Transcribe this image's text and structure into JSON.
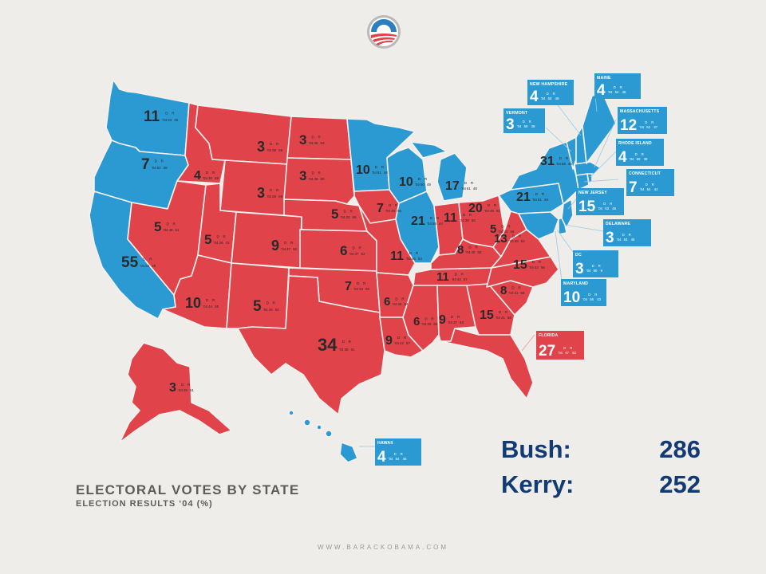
{
  "legend": {
    "title": "ELECTORAL VOTES BY STATE",
    "subtitle": "ELECTION RESULTS ‘04   (%)"
  },
  "results": [
    {
      "name": "Bush:",
      "value": "286"
    },
    {
      "name": "Kerry:",
      "value": "252"
    }
  ],
  "footer": "WWW.BARACKOBAMA.COM",
  "column_headers": {
    "dem": "D",
    "rep": "R",
    "year": "‘04"
  },
  "colors": {
    "republican": "#e0434a",
    "democrat": "#2b9ad3",
    "text_dark": "#123a75"
  },
  "states": {
    "WA": {
      "ev": "11",
      "d": "53",
      "r": "46"
    },
    "OR": {
      "ev": "7",
      "d": "52",
      "r": "48"
    },
    "CA": {
      "ev": "55",
      "d": "54",
      "r": "45"
    },
    "ID": {
      "ev": "4",
      "d": "30",
      "r": "68"
    },
    "NV": {
      "ev": "5",
      "d": "48",
      "r": "51"
    },
    "MT": {
      "ev": "3",
      "d": "39",
      "r": "59"
    },
    "WY": {
      "ev": "3",
      "d": "29",
      "r": "69"
    },
    "UT": {
      "ev": "5",
      "d": "26",
      "r": "72"
    },
    "AZ": {
      "ev": "10",
      "d": "44",
      "r": "55"
    },
    "CO": {
      "ev": "9",
      "d": "47",
      "r": "52"
    },
    "NM": {
      "ev": "5",
      "d": "49",
      "r": "50"
    },
    "ND": {
      "ev": "3",
      "d": "36",
      "r": "63"
    },
    "SD": {
      "ev": "3",
      "d": "38",
      "r": "60"
    },
    "NE": {
      "ev": "5",
      "d": "33",
      "r": "66"
    },
    "KS": {
      "ev": "6",
      "d": "37",
      "r": "62"
    },
    "OK": {
      "ev": "7",
      "d": "34",
      "r": "66"
    },
    "TX": {
      "ev": "34",
      "d": "38",
      "r": "61"
    },
    "MN": {
      "ev": "10",
      "d": "51",
      "r": "48"
    },
    "IA": {
      "ev": "7",
      "d": "49",
      "r": "50"
    },
    "MO": {
      "ev": "11",
      "d": "46",
      "r": "53"
    },
    "AR": {
      "ev": "6",
      "d": "45",
      "r": "54"
    },
    "LA": {
      "ev": "9",
      "d": "42",
      "r": "57"
    },
    "WI": {
      "ev": "10",
      "d": "50",
      "r": "49"
    },
    "IL": {
      "ev": "21",
      "d": "55",
      "r": "44"
    },
    "MI": {
      "ev": "17",
      "d": "51",
      "r": "48"
    },
    "IN": {
      "ev": "11",
      "d": "39",
      "r": "60"
    },
    "OH": {
      "ev": "20",
      "d": "49",
      "r": "51"
    },
    "KY": {
      "ev": "8",
      "d": "40",
      "r": "60"
    },
    "TN": {
      "ev": "11",
      "d": "43",
      "r": "57"
    },
    "MS": {
      "ev": "6",
      "d": "40",
      "r": "60"
    },
    "AL": {
      "ev": "9",
      "d": "37",
      "r": "63"
    },
    "GA": {
      "ev": "15",
      "d": "41",
      "r": "58"
    },
    "SC": {
      "ev": "8",
      "d": "41",
      "r": "58"
    },
    "NC": {
      "ev": "15",
      "d": "44",
      "r": "56"
    },
    "VA": {
      "ev": "13",
      "d": "45",
      "r": "54"
    },
    "WV": {
      "ev": "5",
      "d": "43",
      "r": "56"
    },
    "PA": {
      "ev": "21",
      "d": "51",
      "r": "48"
    },
    "NY": {
      "ev": "31",
      "d": "58",
      "r": "40"
    },
    "AK": {
      "ev": "3",
      "d": "36",
      "r": "61"
    }
  },
  "callouts": {
    "NH": {
      "name": "NEW HAMPSHIRE",
      "ev": "4",
      "d": "50",
      "r": "49"
    },
    "VT": {
      "name": "VERMONT",
      "ev": "3",
      "d": "59",
      "r": "39"
    },
    "ME": {
      "name": "MAINE",
      "ev": "4",
      "d": "54",
      "r": "45"
    },
    "MA": {
      "name": "MASSACHUSETTS",
      "ev": "12",
      "d": "62",
      "r": "37"
    },
    "RI": {
      "name": "RHODE ISLAND",
      "ev": "4",
      "d": "60",
      "r": "39"
    },
    "CT": {
      "name": "CONNECTICUT",
      "ev": "7",
      "d": "54",
      "r": "44"
    },
    "NJ": {
      "name": "NEW JERSEY",
      "ev": "15",
      "d": "53",
      "r": "46"
    },
    "DE": {
      "name": "DELAWARE",
      "ev": "3",
      "d": "53",
      "r": "46"
    },
    "DC": {
      "name": "DC",
      "ev": "3",
      "d": "90",
      "r": "9"
    },
    "MD": {
      "name": "MARYLAND",
      "ev": "10",
      "d": "56",
      "r": "43"
    },
    "FL": {
      "name": "FLORIDA",
      "ev": "27",
      "d": "47",
      "r": "52"
    },
    "HI": {
      "name": "HAWAII",
      "ev": "4",
      "d": "54",
      "r": "45"
    }
  }
}
